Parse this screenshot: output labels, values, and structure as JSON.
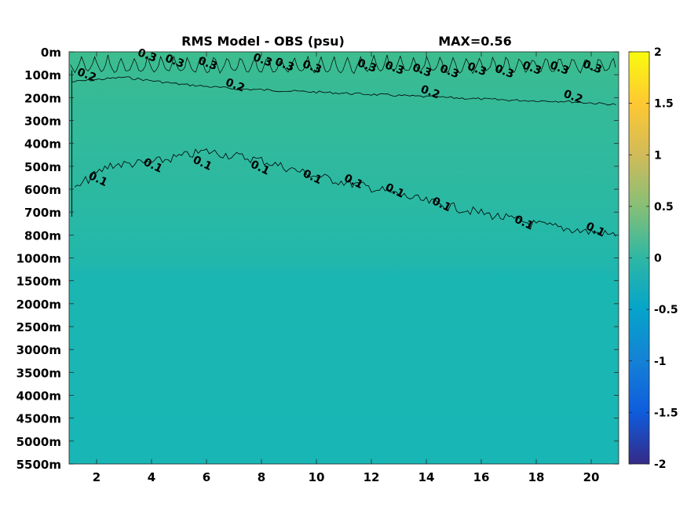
{
  "chart_data": {
    "type": "heatmap",
    "title": "RMS Model - OBS (psu)",
    "max_label": "MAX=0.56",
    "x_ticks": [
      "2",
      "4",
      "6",
      "8",
      "10",
      "12",
      "14",
      "16",
      "18",
      "20"
    ],
    "x_tick_values": [
      2,
      4,
      6,
      8,
      10,
      12,
      14,
      16,
      18,
      20
    ],
    "xlim": [
      1,
      21
    ],
    "y_ticks": [
      "0m",
      "100m",
      "200m",
      "300m",
      "400m",
      "500m",
      "600m",
      "700m",
      "800m",
      "1000m",
      "1500m",
      "2000m",
      "2500m",
      "3000m",
      "3500m",
      "4000m",
      "4500m",
      "5000m",
      "5500m"
    ],
    "y_tick_depths": [
      0,
      100,
      200,
      300,
      400,
      500,
      600,
      700,
      800,
      1000,
      1500,
      2000,
      2500,
      3000,
      3500,
      4000,
      4500,
      5000,
      5500
    ],
    "y_scale": "piecewise-linear (0-800m stretched, 800-1000m, then 500m steps)",
    "colorbar": {
      "range": [
        -2,
        2
      ],
      "ticks": [
        "2",
        "1.5",
        "1",
        "0.5",
        "0",
        "-0.5",
        "-1",
        "-1.5",
        "-2"
      ],
      "tick_values": [
        2,
        1.5,
        1,
        0.5,
        0,
        -0.5,
        -1,
        -1.5,
        -2
      ],
      "colormap": "parula"
    },
    "contour_labels": [
      {
        "text": "0.3",
        "x": 3.8,
        "depth": 30
      },
      {
        "text": "0.3",
        "x": 4.8,
        "depth": 55
      },
      {
        "text": "0.3",
        "x": 6.0,
        "depth": 65
      },
      {
        "text": "0.3",
        "x": 8.0,
        "depth": 50
      },
      {
        "text": "0.3",
        "x": 8.8,
        "depth": 70
      },
      {
        "text": "0.3",
        "x": 9.8,
        "depth": 80
      },
      {
        "text": "0.3",
        "x": 11.8,
        "depth": 75
      },
      {
        "text": "0.3",
        "x": 12.8,
        "depth": 85
      },
      {
        "text": "0.3",
        "x": 13.8,
        "depth": 95
      },
      {
        "text": "0.3",
        "x": 14.8,
        "depth": 100
      },
      {
        "text": "0.3",
        "x": 15.8,
        "depth": 90
      },
      {
        "text": "0.3",
        "x": 16.8,
        "depth": 100
      },
      {
        "text": "0.3",
        "x": 17.8,
        "depth": 85
      },
      {
        "text": "0.3",
        "x": 18.8,
        "depth": 85
      },
      {
        "text": "0.3",
        "x": 20.0,
        "depth": 80
      },
      {
        "text": "0.2",
        "x": 1.6,
        "depth": 115
      },
      {
        "text": "0.2",
        "x": 7.0,
        "depth": 160
      },
      {
        "text": "0.2",
        "x": 14.1,
        "depth": 190
      },
      {
        "text": "0.2",
        "x": 19.3,
        "depth": 210
      },
      {
        "text": "0.1",
        "x": 2.0,
        "depth": 570
      },
      {
        "text": "0.1",
        "x": 4.0,
        "depth": 510
      },
      {
        "text": "0.1",
        "x": 5.8,
        "depth": 500
      },
      {
        "text": "0.1",
        "x": 7.9,
        "depth": 520
      },
      {
        "text": "0.1",
        "x": 9.8,
        "depth": 560
      },
      {
        "text": "0.1",
        "x": 11.3,
        "depth": 580
      },
      {
        "text": "0.1",
        "x": 12.8,
        "depth": 620
      },
      {
        "text": "0.1",
        "x": 14.5,
        "depth": 680
      },
      {
        "text": "0.1",
        "x": 17.5,
        "depth": 760
      },
      {
        "text": "0.1",
        "x": 20.1,
        "depth": 790
      }
    ],
    "contour_levels": [
      {
        "level": "0.3",
        "note": "dense oscillating contour in top ~100m"
      },
      {
        "level": "0.2",
        "depths": [
          [
            1.1,
            130
          ],
          [
            3,
            110
          ],
          [
            5,
            140
          ],
          [
            7,
            160
          ],
          [
            9,
            170
          ],
          [
            11,
            180
          ],
          [
            13,
            190
          ],
          [
            15,
            200
          ],
          [
            17,
            210
          ],
          [
            19,
            215
          ],
          [
            21,
            230
          ]
        ]
      },
      {
        "level": "0.1",
        "depths": [
          [
            1.2,
            600
          ],
          [
            1.6,
            560
          ],
          [
            2.5,
            490
          ],
          [
            4,
            480
          ],
          [
            6,
            430
          ],
          [
            8,
            470
          ],
          [
            10,
            540
          ],
          [
            12,
            590
          ],
          [
            14,
            650
          ],
          [
            16,
            700
          ],
          [
            18,
            750
          ],
          [
            21,
            800
          ]
        ]
      }
    ],
    "field_description": {
      "surface_value": 0.35,
      "deep_value": 0.03,
      "transition_depth": 900
    },
    "grid": false,
    "legend": "none"
  }
}
